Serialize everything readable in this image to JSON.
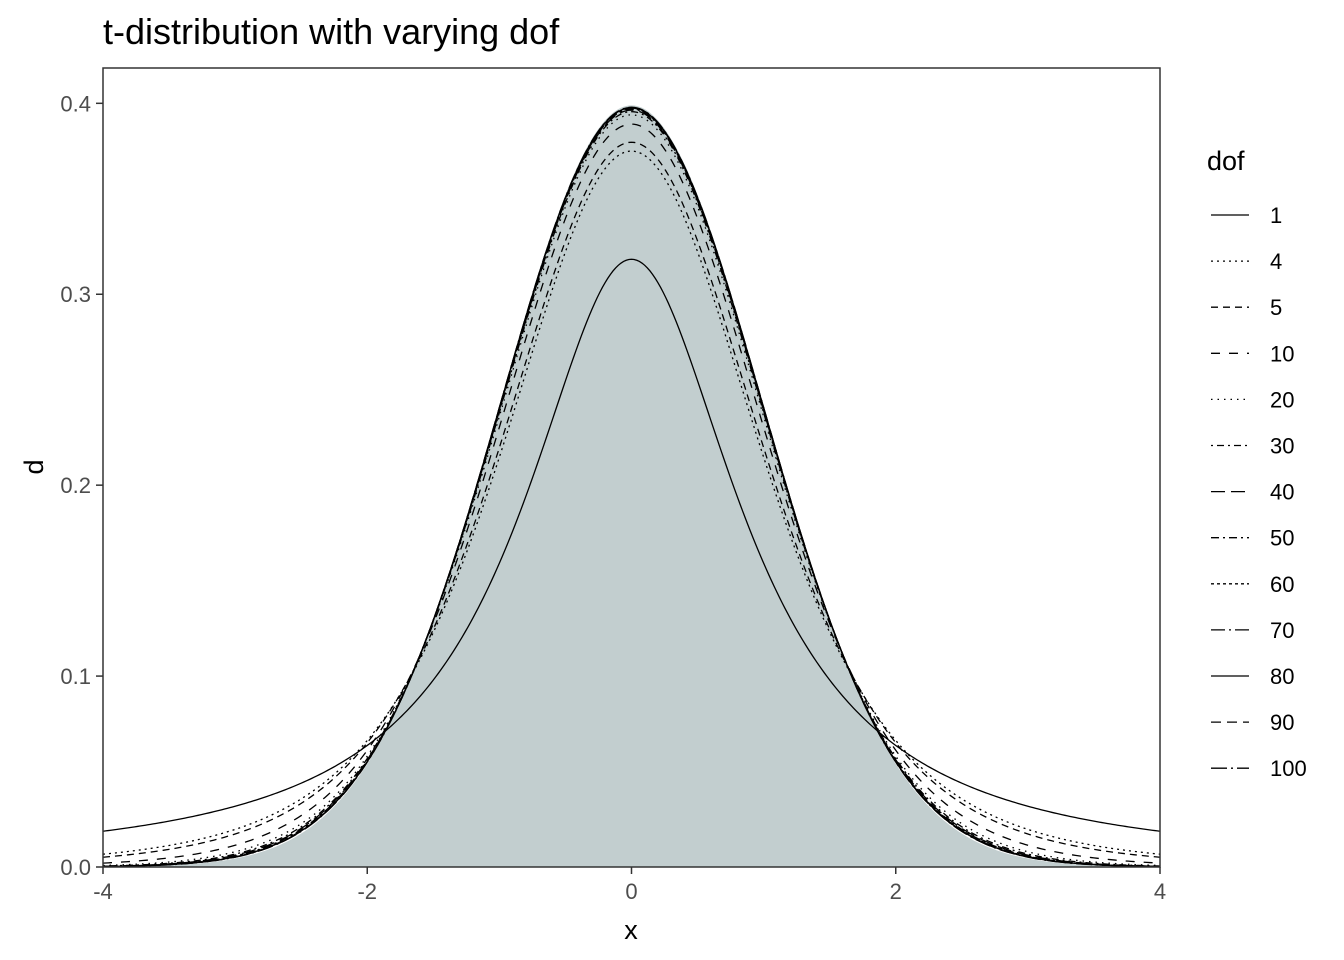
{
  "chart_data": {
    "type": "line",
    "title": "t-distribution with varying dof",
    "xlabel": "x",
    "ylabel": "d",
    "xlim": [
      -4,
      4
    ],
    "ylim": [
      0,
      0.4
    ],
    "x_ticks": [
      -4,
      -2,
      0,
      2,
      4
    ],
    "x_tick_labels": [
      "-4",
      "-2",
      "0",
      "2",
      "4"
    ],
    "y_ticks": [
      0,
      0.1,
      0.2,
      0.3,
      0.4
    ],
    "y_tick_labels": [
      "0.0",
      "0.1",
      "0.2",
      "0.3",
      "0.4"
    ],
    "grid": false,
    "legend_placement": "right",
    "legend_title": "dof",
    "fill_color": "#c2cecf",
    "line_color": "#000000",
    "fill": "standard normal density shaded under curves",
    "series": [
      {
        "name": "1",
        "dof": 1,
        "linetype": "solid"
      },
      {
        "name": "4",
        "dof": 4,
        "linetype": "dotted"
      },
      {
        "name": "5",
        "dof": 5,
        "linetype": "dashed"
      },
      {
        "name": "10",
        "dof": 10,
        "linetype": "longdash-gap"
      },
      {
        "name": "20",
        "dof": 20,
        "linetype": "fine-dotted"
      },
      {
        "name": "30",
        "dof": 30,
        "linetype": "dotdash"
      },
      {
        "name": "40",
        "dof": 40,
        "linetype": "longdash"
      },
      {
        "name": "50",
        "dof": 50,
        "linetype": "dash-dot-short"
      },
      {
        "name": "60",
        "dof": 60,
        "linetype": "short-dotted"
      },
      {
        "name": "70",
        "dof": 70,
        "linetype": "long-dot"
      },
      {
        "name": "80",
        "dof": 80,
        "linetype": "solid"
      },
      {
        "name": "90",
        "dof": 90,
        "linetype": "dash-gap"
      },
      {
        "name": "100",
        "dof": 100,
        "linetype": "long-dot-2"
      }
    ]
  }
}
